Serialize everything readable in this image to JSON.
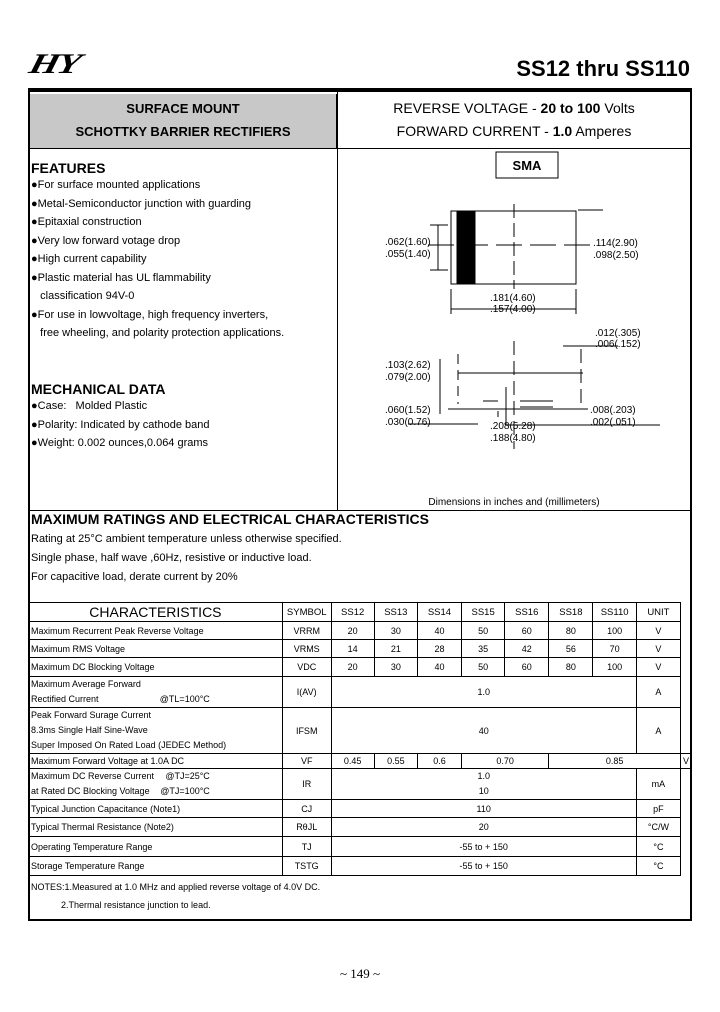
{
  "header": {
    "logo": "HY",
    "title": "SS12 thru SS110"
  },
  "banner": {
    "left_line1": "SURFACE MOUNT",
    "left_line2": "SCHOTTKY BARRIER  RECTIFIERS",
    "rv_label": "REVERSE VOLTAGE  - ",
    "rv_value": "20 to 100",
    "rv_unit": " Volts",
    "fc_label": "FORWARD CURRENT - ",
    "fc_value": "1.0",
    "fc_unit": " Amperes"
  },
  "features": {
    "title": "FEATURES",
    "items": [
      "●For surface mounted applications",
      "●Metal-Semiconductor junction with guarding",
      "●Epitaxial construction",
      "●Very low forward votage drop",
      "●High current capability",
      "●Plastic material has UL flammability",
      "   classification 94V-0",
      "●For use in lowvoltage, high frequency inverters,",
      "   free wheeling, and polarity protection applications."
    ]
  },
  "mechanical": {
    "title": "MECHANICAL DATA",
    "items": [
      "●Case:   Molded Plastic",
      "●Polarity: Indicated by cathode band",
      "●Weight: 0.002 ounces,0.064 grams"
    ]
  },
  "diagram": {
    "package": "SMA",
    "dims": {
      "a1": ".062(1.60)",
      "a2": ".055(1.40)",
      "b1": ".114(2.90)",
      "b2": ".098(2.50)",
      "c1": ".181(4.60)",
      "c2": ".157(4.00)",
      "d1": ".012(.305)",
      "d2": ".006(.152)",
      "e1": ".103(2.62)",
      "e2": ".079(2.00)",
      "f1": ".060(1.52)",
      "f2": ".030(0.76)",
      "g1": ".208(5.28)",
      "g2": ".188(4.80)",
      "h1": ".008(.203)",
      "h2": ".002(.051)"
    },
    "caption": "Dimensions in inches and (millimeters)"
  },
  "ratings": {
    "title": "MAXIMUM RATINGS AND ELECTRICAL CHARACTERISTICS",
    "lines": [
      "Rating at 25°C ambient temperature unless otherwise specified.",
      "Single phase, half wave ,60Hz, resistive or inductive load.",
      "For capacitive load, derate current by 20%"
    ]
  },
  "table": {
    "headers": [
      "CHARACTERISTICS",
      "SYMBOL",
      "SS12",
      "SS13",
      "SS14",
      "SS15",
      "SS16",
      "SS18",
      "SS110",
      "UNIT"
    ],
    "rows": [
      {
        "char": "Maximum Recurrent Peak Reverse Voltage",
        "sym": "VRRM",
        "vals": [
          "20",
          "30",
          "40",
          "50",
          "60",
          "80",
          "100"
        ],
        "unit": "V"
      },
      {
        "char": "Maximum RMS Voltage",
        "sym": "VRMS",
        "vals": [
          "14",
          "21",
          "28",
          "35",
          "42",
          "56",
          "70"
        ],
        "unit": "V"
      },
      {
        "char": "Maximum DC Blocking Voltage",
        "sym": "VDC",
        "vals": [
          "20",
          "30",
          "40",
          "50",
          "60",
          "80",
          "100"
        ],
        "unit": "V"
      },
      {
        "char1": "Maximum Average Forward",
        "char2": "Rectified Current",
        "cond": "@TL=100°C",
        "sym": "I(AV)",
        "val": "1.0",
        "unit": "A"
      },
      {
        "char1": "Peak Forward Surage Current",
        "char2": "8.3ms Single Half Sine-Wave",
        "char3": "Super Imposed On Rated Load (JEDEC Method)",
        "sym": "IFSM",
        "val": "40",
        "unit": "A"
      },
      {
        "char": "Maximum Forward  Voltage  at 1.0A DC",
        "sym": "VF",
        "vals": [
          "0.45",
          "0.55",
          "0.6",
          "0.70",
          "0.85"
        ],
        "unit": "V"
      },
      {
        "char1": "Maximum DC Reverse Current",
        "cond1": "@TJ=25°C",
        "char2": " at Rated DC Blocking Voltage",
        "cond2": "@TJ=100°C",
        "sym": "IR",
        "val1": "1.0",
        "val2": "10",
        "unit": "mA"
      },
      {
        "char": "Typical Junction  Capacitance (Note1)",
        "sym": "CJ",
        "val": "110",
        "unit": "pF"
      },
      {
        "char": "Typical Thermal Resistance (Note2)",
        "sym": "RθJL",
        "val": "20",
        "unit": "°C/W"
      },
      {
        "char": "Operating Temperature Range",
        "sym": "TJ",
        "val": "-55 to + 150",
        "unit": "°C"
      },
      {
        "char": "Storage Temperature Range",
        "sym": "TSTG",
        "val": "-55 to + 150",
        "unit": "°C"
      }
    ]
  },
  "notes": {
    "n1": "NOTES:1.Measured at 1.0 MHz and applied reverse voltage of 4.0V DC.",
    "n2": "2.Thermal resistance junction to lead."
  },
  "page_number": "~ 149 ~"
}
